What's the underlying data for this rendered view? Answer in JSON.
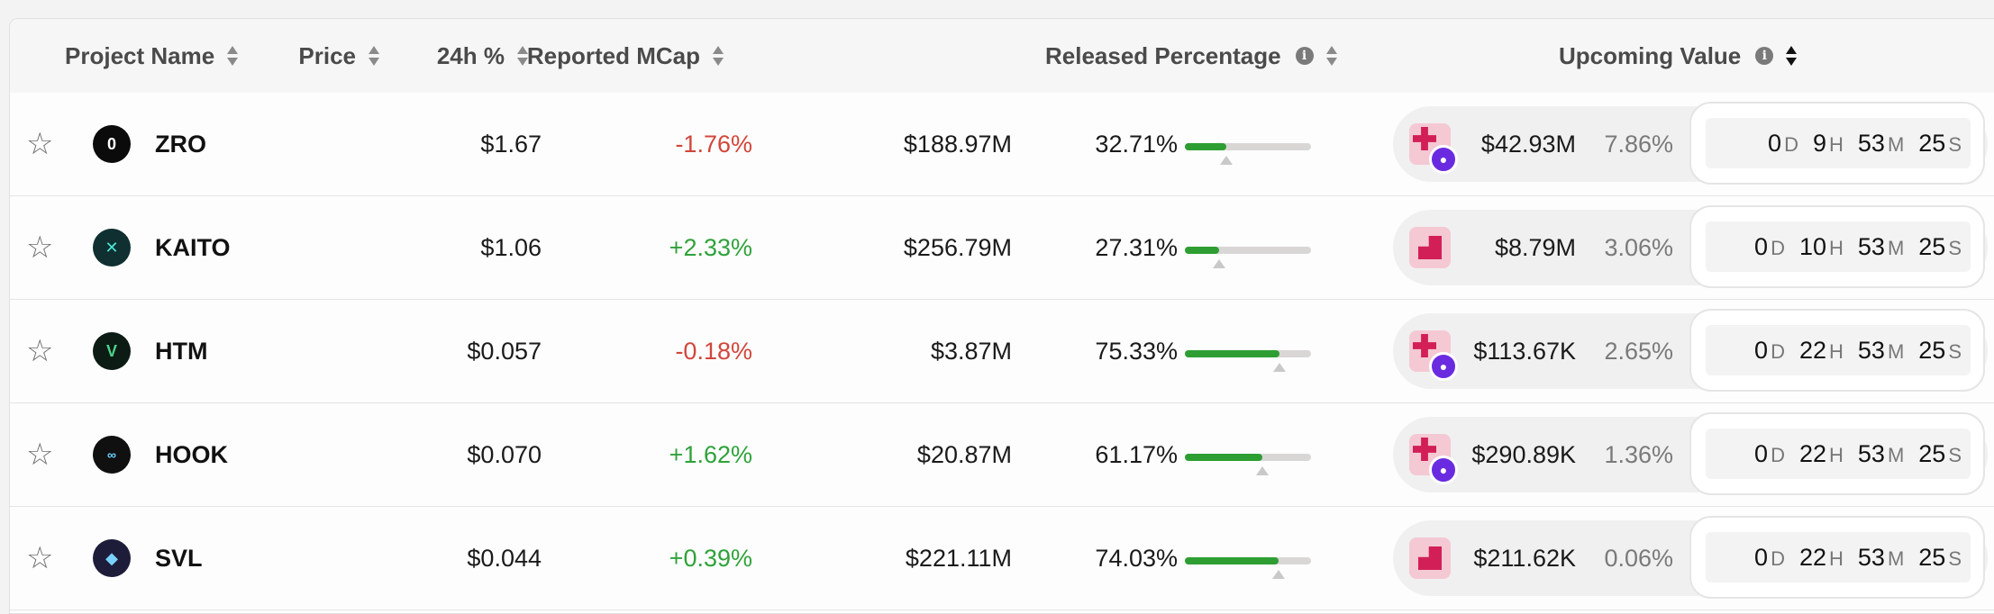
{
  "header": {
    "project_name": "Project Name",
    "price": "Price",
    "change_24h": "24h %",
    "reported_mcap": "Reported MCap",
    "released_percentage": "Released Percentage",
    "upcoming_value": "Upcoming Value",
    "info_glyph": "i"
  },
  "icons": {
    "star": "☆"
  },
  "rows": [
    {
      "logo_glyph": "0",
      "name": "ZRO",
      "price": "$1.67",
      "change": "-1.76%",
      "change_dir": "neg",
      "mcap": "$188.97M",
      "released": "32.71%",
      "released_fraction": 0.3271,
      "upcoming_value": "$42.93M",
      "upcoming_pct": "7.86%",
      "unlock_icon": "plus-with-user-icon",
      "timer": {
        "d": "0",
        "h": "9",
        "m": "53",
        "s": "25"
      }
    },
    {
      "logo_glyph": "✕",
      "name": "KAITO",
      "price": "$1.06",
      "change": "+2.33%",
      "change_dir": "pos",
      "mcap": "$256.79M",
      "released": "27.31%",
      "released_fraction": 0.2731,
      "upcoming_value": "$8.79M",
      "upcoming_pct": "3.06%",
      "unlock_icon": "block-icon",
      "timer": {
        "d": "0",
        "h": "10",
        "m": "53",
        "s": "25"
      }
    },
    {
      "logo_glyph": "V",
      "name": "HTM",
      "price": "$0.057",
      "change": "-0.18%",
      "change_dir": "neg",
      "mcap": "$3.87M",
      "released": "75.33%",
      "released_fraction": 0.7533,
      "upcoming_value": "$113.67K",
      "upcoming_pct": "2.65%",
      "unlock_icon": "plus-with-user-icon",
      "timer": {
        "d": "0",
        "h": "22",
        "m": "53",
        "s": "25"
      }
    },
    {
      "logo_glyph": "∞",
      "name": "HOOK",
      "price": "$0.070",
      "change": "+1.62%",
      "change_dir": "pos",
      "mcap": "$20.87M",
      "released": "61.17%",
      "released_fraction": 0.6117,
      "upcoming_value": "$290.89K",
      "upcoming_pct": "1.36%",
      "unlock_icon": "plus-with-user-icon",
      "timer": {
        "d": "0",
        "h": "22",
        "m": "53",
        "s": "25"
      }
    },
    {
      "logo_glyph": "◆",
      "name": "SVL",
      "price": "$0.044",
      "change": "+0.39%",
      "change_dir": "pos",
      "mcap": "$221.11M",
      "released": "74.03%",
      "released_fraction": 0.7403,
      "upcoming_value": "$211.62K",
      "upcoming_pct": "0.06%",
      "unlock_icon": "block-icon",
      "timer": {
        "d": "0",
        "h": "22",
        "m": "53",
        "s": "25"
      }
    }
  ],
  "timer_units": {
    "d": "D",
    "h": "H",
    "m": "M",
    "s": "S"
  }
}
